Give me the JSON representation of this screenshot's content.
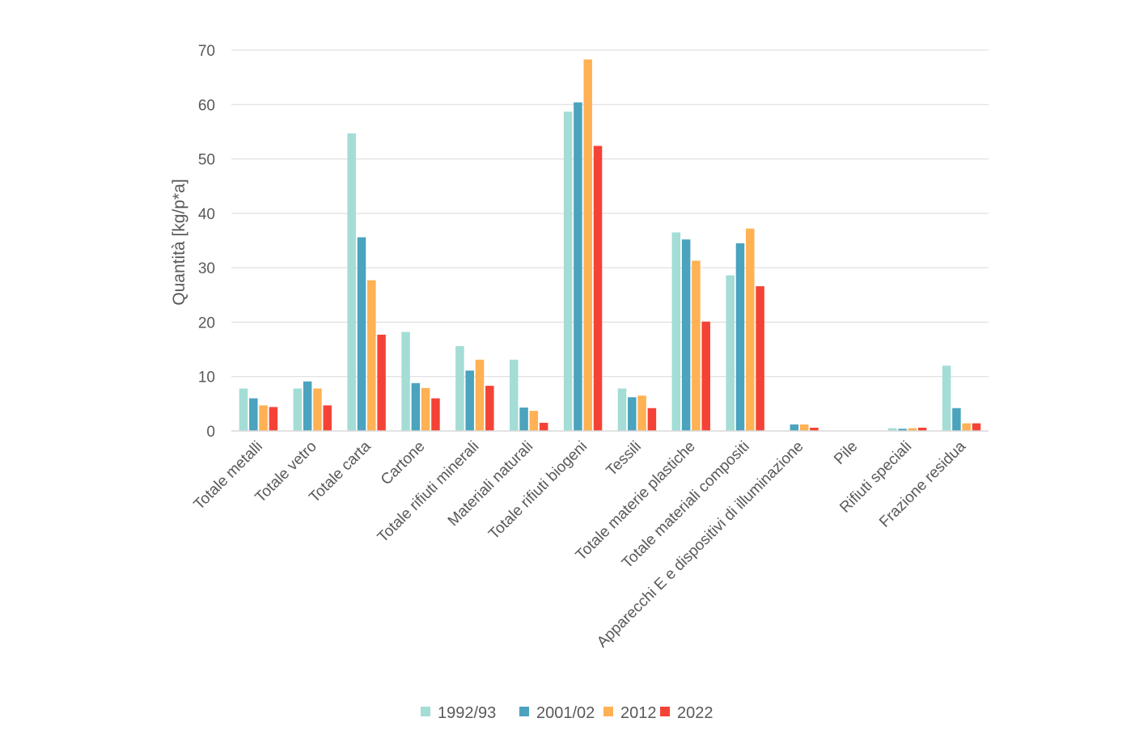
{
  "chart_data": {
    "type": "bar",
    "title": "",
    "xlabel": "",
    "ylabel": "Quantità [kg/p*a]",
    "ylim": [
      0,
      70
    ],
    "yticks": [
      0,
      10,
      20,
      30,
      40,
      50,
      60,
      70
    ],
    "grid": true,
    "legend_position": "bottom",
    "categories": [
      "Totale metalli",
      "Totale vetro",
      "Totale carta",
      "Cartone",
      "Totale rifiuti minerali",
      "Materiali naturali",
      "Totale rifiuti biogeni",
      "Tessili",
      "Totale materie plastiche",
      "Totale materiali compositi",
      "Apparecchi E e dispositivi di illuminazione",
      "Pile",
      "Rifiuti speciali",
      "Frazione residua"
    ],
    "series": [
      {
        "name": "1992/93",
        "color": "#a3ddd6",
        "values": [
          7.8,
          7.8,
          54.7,
          18.2,
          15.6,
          13.1,
          58.7,
          7.8,
          36.5,
          28.6,
          0,
          0,
          0.5,
          12.0
        ]
      },
      {
        "name": "2001/02",
        "color": "#4ba3be",
        "values": [
          6.0,
          9.1,
          35.6,
          8.8,
          11.1,
          4.3,
          60.4,
          6.2,
          35.2,
          34.5,
          1.2,
          0,
          0.4,
          4.2
        ]
      },
      {
        "name": "2012",
        "color": "#ffb154",
        "values": [
          4.7,
          7.8,
          27.7,
          7.9,
          13.1,
          3.7,
          68.3,
          6.5,
          31.3,
          37.2,
          1.2,
          0,
          0.5,
          1.4
        ]
      },
      {
        "name": "2022",
        "color": "#f44336",
        "values": [
          4.4,
          4.7,
          17.7,
          6.0,
          8.3,
          1.5,
          52.4,
          4.2,
          20.1,
          26.6,
          0.6,
          0,
          0.6,
          1.4
        ]
      }
    ]
  }
}
